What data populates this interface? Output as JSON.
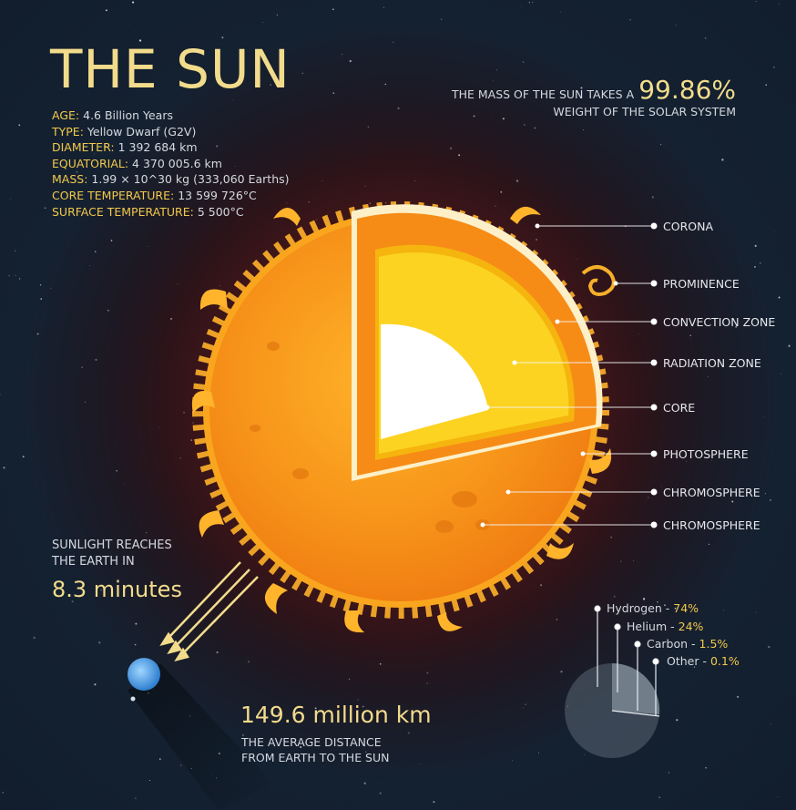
{
  "title": "THE SUN",
  "facts": [
    {
      "key": "AGE:",
      "value": "4.6 Billion Years"
    },
    {
      "key": "TYPE:",
      "value": "Yellow Dwarf (G2V)"
    },
    {
      "key": "DIAMETER:",
      "value": "1 392 684 km"
    },
    {
      "key": "EQUATORIAL:",
      "value": "4 370 005.6 km"
    },
    {
      "key": "MASS:",
      "value": "1.99 × 10^30 kg (333,060 Earths)"
    },
    {
      "key": "CORE TEMPERATURE:",
      "value": "13 599 726°C"
    },
    {
      "key": "SURFACE TEMPERATURE:",
      "value": "5 500°C"
    }
  ],
  "mass_note": {
    "prefix": "THE MASS OF THE SUN TAKES A",
    "percent": "99.86%",
    "suffix": "WEIGHT OF THE SOLAR SYSTEM"
  },
  "layers": [
    "CORONA",
    "PROMINENCE",
    "CONVECTION ZONE",
    "RADIATION ZONE",
    "CORE",
    "PHOTOSPHERE",
    "CHROMOSPHERE",
    "CHROMOSPHERE"
  ],
  "sunlight": {
    "line1": "SUNLIGHT REACHES",
    "line2": "THE EARTH IN",
    "time": "8.3 minutes"
  },
  "distance": {
    "value": "149.6 million km",
    "line1": "THE AVERAGE DISTANCE",
    "line2": "FROM EARTH TO THE SUN"
  },
  "composition": [
    {
      "element": "Hydrogen",
      "percent": "74%"
    },
    {
      "element": "Helium",
      "percent": "24%"
    },
    {
      "element": "Carbon",
      "percent": "1.5%"
    },
    {
      "element": "Other",
      "percent": "0.1%"
    }
  ],
  "colors": {
    "background": "#13202e",
    "accent_gold": "#f2dc8c",
    "label_yellow": "#f2c94c",
    "sun_orange": "#f7a21b",
    "core_white": "#ffffff"
  }
}
